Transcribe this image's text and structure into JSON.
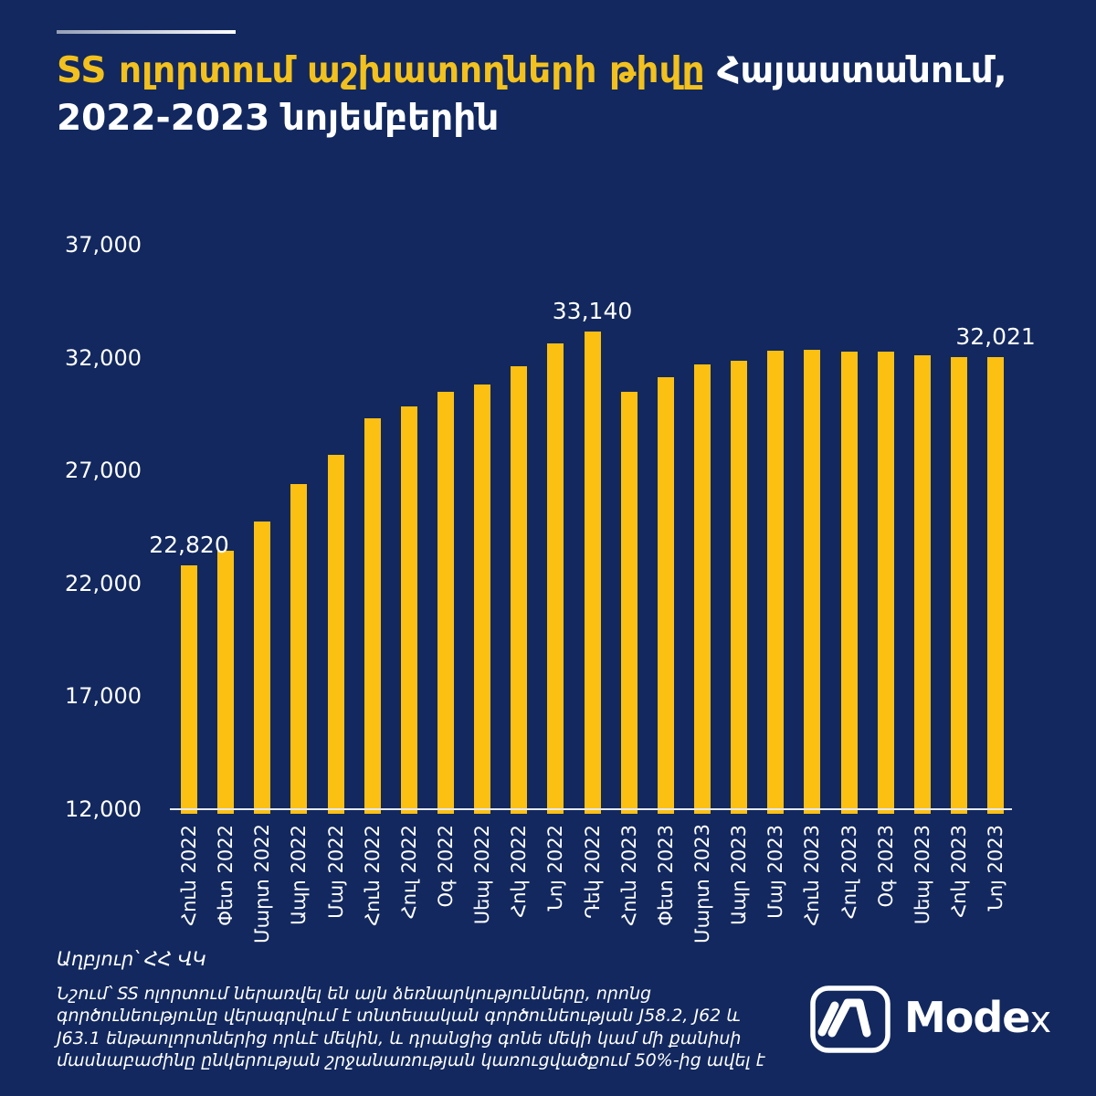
{
  "page": {
    "background_color": "#12285E",
    "accent_color": "#FFFFFF"
  },
  "header": {
    "title_highlight": "SS ոլորտում աշխատողների թիվը",
    "title_rest": "Հայաստանում,",
    "title_line2": "2022-2023 նոյեմբերին",
    "highlight_color": "#F2C11E",
    "title_color": "#FFFFFF"
  },
  "chart_data": {
    "type": "bar",
    "title": "SS ոլորտում աշխատողների թիվը Հայաստանում, 2022-2023 նոյեմբերին",
    "categories": [
      "Հուն 2022",
      "Փետ 2022",
      "Մարտ 2022",
      "Ապր 2022",
      "Մայ 2022",
      "Հուն 2022",
      "Հուլ 2022",
      "Օգ 2022",
      "Սեպ 2022",
      "Հոկ 2022",
      "Նոյ 2022",
      "Դեկ 2022",
      "Հուն 2023",
      "Փետ 2023",
      "Մարտ 2023",
      "Ապր 2023",
      "Մայ 2023",
      "Հուն 2023",
      "Հուլ 2023",
      "Օգ 2023",
      "Սեպ 2023",
      "Հոկ 2023",
      "Նոյ 2023"
    ],
    "values": [
      22820,
      23450,
      24750,
      26400,
      27700,
      29320,
      29860,
      30500,
      30830,
      31610,
      32650,
      33140,
      30470,
      31150,
      31710,
      31870,
      32320,
      32340,
      32250,
      32280,
      32110,
      32020,
      32021
    ],
    "annotations": [
      {
        "index": 0,
        "text": "22,820"
      },
      {
        "index": 11,
        "text": "33,140"
      },
      {
        "index": 22,
        "text": "32,021"
      }
    ],
    "y_ticks": [
      {
        "value": 37000,
        "label": "37,000"
      },
      {
        "value": 32000,
        "label": "32,000"
      },
      {
        "value": 27000,
        "label": "27,000"
      },
      {
        "value": 22000,
        "label": "22,000"
      },
      {
        "value": 17000,
        "label": "17,000"
      },
      {
        "value": 12000,
        "label": "12,000"
      }
    ],
    "ylim": [
      12000,
      37000
    ],
    "xlabel": "",
    "ylabel": "",
    "grid": false,
    "legend": false,
    "bar_color": "#FCC013",
    "axis_line_color": "#E6EBF4",
    "tick_label_color": "#FFFFFF"
  },
  "footer": {
    "source": "Աղբյուր՝ ՀՀ ՎԿ",
    "note": "Նշում՝ SS ոլորտում ներառվել են այն ձեռնարկությունները, որոնց գործունեությունը վերագրվում է տնտեսական գործունեության J58.2, J62 և J63.1 ենթաոլորտներից որևէ մեկին, և դրանցից գոնե մեկի կամ մի քանիսի մասնաբաժինը ընկերության շրջանառության կառուցվածքում 50%-ից ավել է",
    "logo_main": "Mode",
    "logo_x": "x"
  }
}
